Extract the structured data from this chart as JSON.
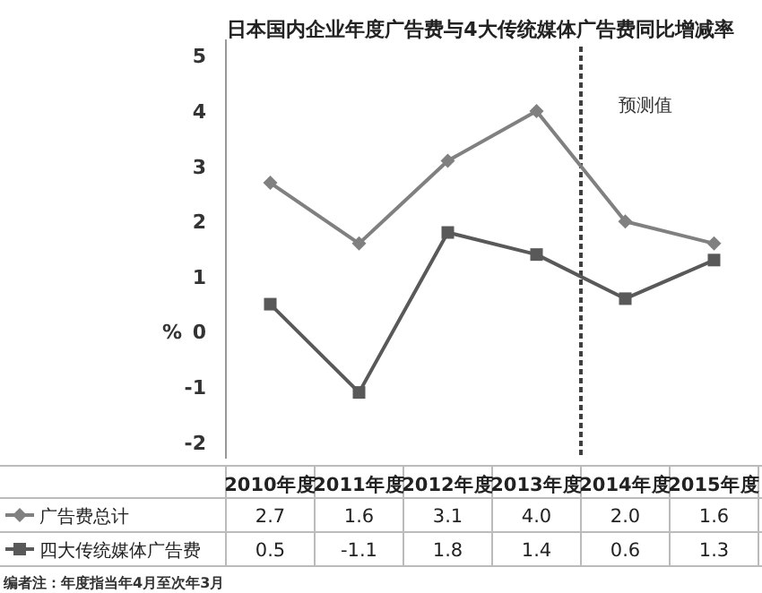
{
  "chart_data": {
    "type": "line",
    "title": "日本国内企业年度广告费与4大传统媒体广告费同比增减率",
    "ylabel": "%",
    "categories": [
      "2010年度",
      "2011年度",
      "2012年度",
      "2013年度",
      "2014年度",
      "2015年度"
    ],
    "series": [
      {
        "name": "广告费总计",
        "color": "#808080",
        "marker": "diamond",
        "values": [
          2.7,
          1.6,
          3.1,
          4.0,
          2.0,
          1.6
        ],
        "value_labels": [
          "2.7",
          "1.6",
          "3.1",
          "4.0",
          "2.0",
          "1.6"
        ]
      },
      {
        "name": "四大传统媒体广告费",
        "color": "#595959",
        "marker": "square",
        "values": [
          0.5,
          -1.1,
          1.8,
          1.4,
          0.6,
          1.3
        ],
        "value_labels": [
          "0.5",
          "-1.1",
          "1.8",
          "1.4",
          "0.6",
          "1.3"
        ]
      }
    ],
    "ylim": [
      -2.3,
      5.3
    ],
    "yticks": [
      -2,
      -1,
      0,
      1,
      2,
      3,
      4,
      5
    ],
    "legend": "bottom left",
    "line_style": "solid",
    "annotations": [
      "预测值",
      "编者注：年度指当年4月至次年3月"
    ]
  }
}
